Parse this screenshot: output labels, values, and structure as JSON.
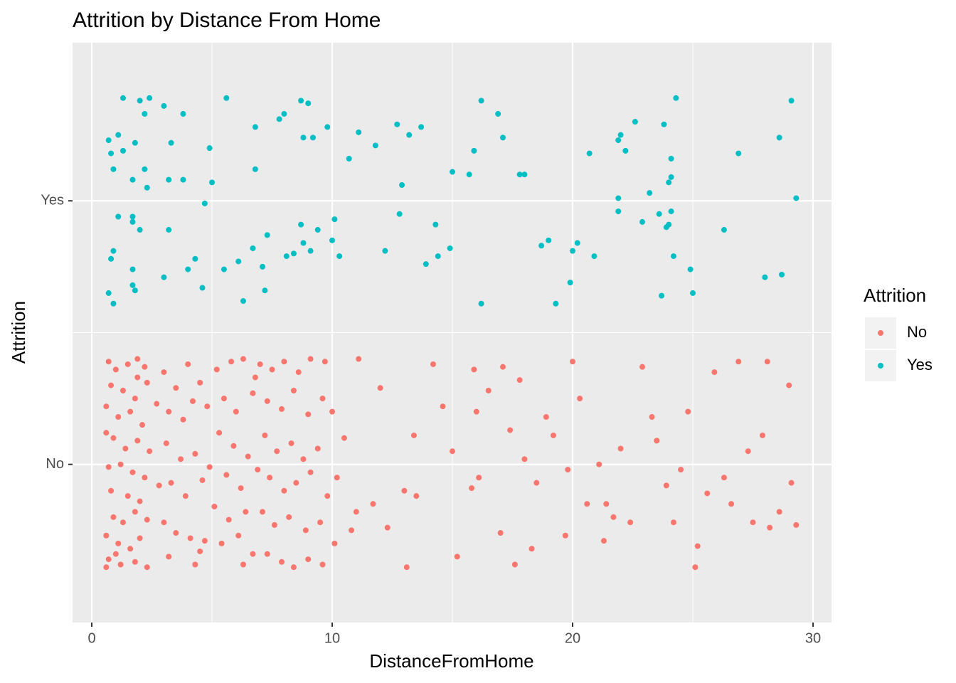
{
  "chart_data": {
    "type": "scatter",
    "title": "Attrition by Distance From Home",
    "x_label": "DistanceFromHome",
    "y_label": "Attrition",
    "legend_title": "Attrition",
    "legend_position": "right",
    "xlim": [
      -0.8,
      30.77
    ],
    "xticks": [
      0,
      10,
      20,
      30
    ],
    "x_minor_grid": [
      5,
      15,
      25
    ],
    "ylim": [
      0.4,
      2.6
    ],
    "yticks": [
      {
        "value": 1,
        "label": "No"
      },
      {
        "value": 2,
        "label": "Yes"
      }
    ],
    "y_minor_grid": [
      1.5
    ],
    "grid": true,
    "series": [
      {
        "name": "No",
        "color": "#F8766D",
        "x": [
          0.7,
          1.0,
          1.5,
          1.9,
          2.2,
          0.8,
          1.3,
          1.8,
          2.3,
          0.6,
          1.1,
          1.6,
          2.1,
          0.9,
          1.4,
          1.9,
          2.4,
          0.6,
          0.7,
          1.2,
          1.7,
          2.2,
          0.8,
          1.5,
          2.0,
          0.9,
          1.3,
          1.8,
          2.3,
          0.6,
          1.1,
          1.6,
          2.0,
          0.7,
          1.2,
          1.8,
          2.3,
          0.6,
          1.0,
          1.9,
          3.0,
          3.5,
          4.0,
          4.5,
          3.2,
          3.8,
          4.2,
          4.8,
          3.1,
          3.7,
          4.3,
          4.9,
          3.3,
          3.9,
          4.6,
          3.0,
          3.5,
          4.1,
          4.5,
          3.2,
          4.3,
          4.7,
          2.8,
          2.7,
          5.2,
          5.8,
          6.3,
          6.8,
          5.5,
          6.0,
          6.7,
          5.3,
          5.9,
          6.5,
          5.6,
          6.2,
          6.9,
          5.1,
          5.7,
          6.4,
          5.4,
          6.1,
          6.7,
          6.3,
          7.0,
          7.5,
          8.0,
          8.6,
          9.1,
          9.7,
          7.3,
          7.9,
          8.4,
          9.0,
          9.6,
          7.2,
          7.7,
          8.3,
          8.8,
          9.4,
          7.4,
          8.0,
          8.5,
          9.1,
          9.8,
          7.1,
          7.6,
          8.2,
          8.9,
          9.5,
          7.3,
          7.9,
          8.4,
          9.0,
          9.6,
          10.1,
          10.0,
          10.2,
          10.5,
          10.8,
          11.1,
          11.0,
          12.0,
          11.7,
          12.3,
          13.0,
          13.5,
          13.4,
          14.2,
          14.6,
          15.2,
          15.0,
          15.8,
          16.1,
          16.0,
          15.9,
          16.5,
          17.1,
          17.4,
          17.0,
          17.8,
          18.0,
          18.3,
          18.5,
          18.9,
          19.2,
          19.7,
          20.0,
          20.3,
          20.6,
          21.1,
          21.4,
          21.7,
          22.0,
          22.4,
          22.9,
          23.3,
          23.5,
          23.9,
          24.2,
          24.5,
          24.8,
          25.2,
          25.6,
          25.9,
          26.3,
          26.6,
          26.9,
          27.3,
          27.9,
          28.2,
          28.6,
          29.0,
          29.3,
          29.1,
          28.1,
          21.3,
          19.8,
          13.1,
          17.6,
          25.1,
          27.5
        ],
        "y": [
          1.39,
          1.36,
          1.38,
          1.4,
          1.37,
          1.3,
          1.28,
          1.25,
          1.31,
          1.22,
          1.18,
          1.2,
          1.15,
          1.1,
          1.06,
          1.09,
          1.05,
          1.12,
          0.99,
          1.0,
          0.97,
          0.95,
          0.9,
          0.88,
          0.86,
          0.8,
          0.78,
          0.82,
          0.79,
          0.73,
          0.7,
          0.68,
          0.72,
          0.64,
          0.62,
          0.63,
          0.61,
          0.61,
          0.66,
          1.33,
          1.35,
          1.29,
          1.38,
          1.31,
          1.2,
          1.17,
          1.24,
          1.22,
          1.08,
          1.02,
          1.04,
          0.99,
          0.93,
          0.88,
          0.94,
          0.78,
          0.74,
          0.72,
          0.67,
          0.65,
          0.62,
          0.71,
          0.92,
          1.23,
          1.36,
          1.39,
          1.4,
          1.33,
          1.25,
          1.2,
          1.27,
          1.12,
          1.07,
          1.03,
          0.96,
          0.91,
          0.98,
          0.84,
          0.79,
          0.82,
          0.7,
          0.73,
          0.66,
          0.62,
          1.38,
          1.36,
          1.39,
          1.35,
          1.4,
          1.39,
          1.24,
          1.21,
          1.28,
          1.19,
          1.25,
          1.11,
          1.05,
          1.08,
          1.02,
          1.06,
          0.95,
          0.9,
          0.93,
          0.97,
          0.88,
          0.82,
          0.77,
          0.8,
          0.75,
          0.78,
          0.66,
          0.63,
          0.61,
          0.64,
          0.62,
          0.7,
          1.2,
          0.95,
          1.1,
          0.75,
          1.4,
          0.82,
          1.29,
          0.85,
          0.76,
          0.9,
          0.88,
          1.11,
          1.38,
          1.22,
          0.65,
          1.05,
          0.91,
          0.95,
          1.2,
          1.36,
          1.28,
          1.37,
          1.13,
          0.74,
          1.32,
          1.02,
          0.68,
          0.93,
          1.18,
          1.11,
          0.73,
          1.39,
          1.25,
          0.85,
          1.0,
          0.85,
          0.8,
          1.06,
          0.78,
          1.37,
          1.18,
          1.09,
          0.92,
          0.78,
          0.98,
          1.2,
          0.69,
          0.89,
          1.35,
          0.95,
          0.85,
          1.39,
          1.05,
          1.11,
          0.76,
          0.82,
          1.3,
          0.77,
          0.93,
          1.39,
          0.71,
          0.98,
          0.61,
          0.62,
          0.61,
          0.78
        ]
      },
      {
        "name": "Yes",
        "color": "#00BFC4",
        "x": [
          1.3,
          2.0,
          2.4,
          3.0,
          3.8,
          2.2,
          0.7,
          1.1,
          1.8,
          3.3,
          0.8,
          1.3,
          0.9,
          2.2,
          1.7,
          2.3,
          3.2,
          3.8,
          4.9,
          5.0,
          5.6,
          6.8,
          6.8,
          4.7,
          7.8,
          8.0,
          8.7,
          9.0,
          8.8,
          9.2,
          9.8,
          10.7,
          11.1,
          11.8,
          12.7,
          13.2,
          13.7,
          12.9,
          15.0,
          15.7,
          15.9,
          16.2,
          16.9,
          17.1,
          17.8,
          18.0,
          20.7,
          21.9,
          22.0,
          22.2,
          22.6,
          23.8,
          24.3,
          24.1,
          24.1,
          24.0,
          23.2,
          21.9,
          26.9,
          28.6,
          29.1,
          29.3,
          21.9,
          22.9,
          23.6,
          24.1,
          23.9,
          24.0,
          26.3,
          24.2,
          24.9,
          25.0,
          23.7,
          28.0,
          28.7,
          0.7,
          0.9,
          0.8,
          0.9,
          1.1,
          1.7,
          1.7,
          2.0,
          1.7,
          1.7,
          1.8,
          3.2,
          3.0,
          4.0,
          4.3,
          4.6,
          5.5,
          6.1,
          6.3,
          6.7,
          7.1,
          7.2,
          7.3,
          8.1,
          8.4,
          8.7,
          8.8,
          9.1,
          9.4,
          10.0,
          10.1,
          10.3,
          12.2,
          12.8,
          13.9,
          14.3,
          14.4,
          14.9,
          16.2,
          18.7,
          19.0,
          19.3,
          19.9,
          20.0,
          20.2,
          20.9
        ],
        "y": [
          2.39,
          2.38,
          2.39,
          2.36,
          2.33,
          2.33,
          2.23,
          2.25,
          2.22,
          2.22,
          2.18,
          2.19,
          2.12,
          2.12,
          2.08,
          2.05,
          2.08,
          2.08,
          2.2,
          2.07,
          2.39,
          2.28,
          2.12,
          1.99,
          2.31,
          2.33,
          2.38,
          2.37,
          2.24,
          2.24,
          2.28,
          2.16,
          2.26,
          2.21,
          2.29,
          2.25,
          2.28,
          2.06,
          2.11,
          2.1,
          2.19,
          2.38,
          2.33,
          2.24,
          2.1,
          2.1,
          2.18,
          2.23,
          2.25,
          2.19,
          2.3,
          2.29,
          2.39,
          2.16,
          2.09,
          2.07,
          2.03,
          2.01,
          2.18,
          2.24,
          2.38,
          2.01,
          1.96,
          1.92,
          1.95,
          1.96,
          1.9,
          1.91,
          1.89,
          1.79,
          1.74,
          1.65,
          1.64,
          1.71,
          1.72,
          1.65,
          1.61,
          1.78,
          1.81,
          1.94,
          1.94,
          1.92,
          1.89,
          1.74,
          1.68,
          1.66,
          1.89,
          1.71,
          1.74,
          1.78,
          1.67,
          1.74,
          1.77,
          1.62,
          1.82,
          1.75,
          1.66,
          1.87,
          1.79,
          1.8,
          1.91,
          1.84,
          1.81,
          1.89,
          1.85,
          1.93,
          1.79,
          1.81,
          1.95,
          1.76,
          1.91,
          1.79,
          1.82,
          1.61,
          1.83,
          1.85,
          1.61,
          1.69,
          1.81,
          1.84,
          1.79
        ]
      }
    ]
  }
}
